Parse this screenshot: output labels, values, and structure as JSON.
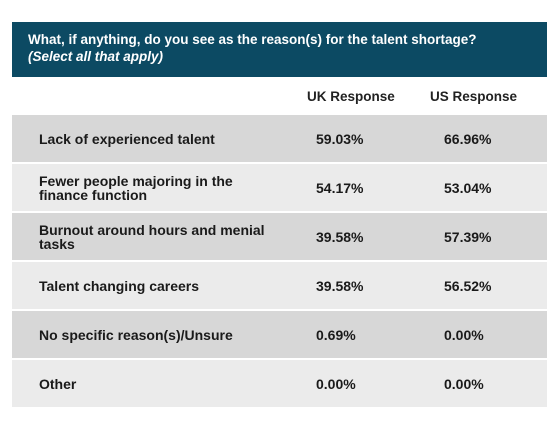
{
  "chart_data": {
    "type": "table",
    "title": "What, if anything, do you see as the reason(s) for the talent shortage?",
    "subtitle": "(Select all that apply)",
    "columns": [
      "UK Response",
      "US Response"
    ],
    "rows": [
      {
        "label": "Lack of experienced talent",
        "uk": "59.03%",
        "us": "66.96%"
      },
      {
        "label": "Fewer people majoring in the finance function",
        "uk": "54.17%",
        "us": "53.04%"
      },
      {
        "label": "Burnout around hours and menial tasks",
        "uk": "39.58%",
        "us": "57.39%"
      },
      {
        "label": "Talent changing careers",
        "uk": "39.58%",
        "us": "56.52%"
      },
      {
        "label": "No specific reason(s)/Unsure",
        "uk": "0.69%",
        "us": "0.00%"
      },
      {
        "label": "Other",
        "uk": "0.00%",
        "us": "0.00%"
      }
    ],
    "colors": {
      "header": "#0c4a63",
      "row_dark": "#d7d7d7",
      "row_light": "#ebebeb"
    }
  }
}
